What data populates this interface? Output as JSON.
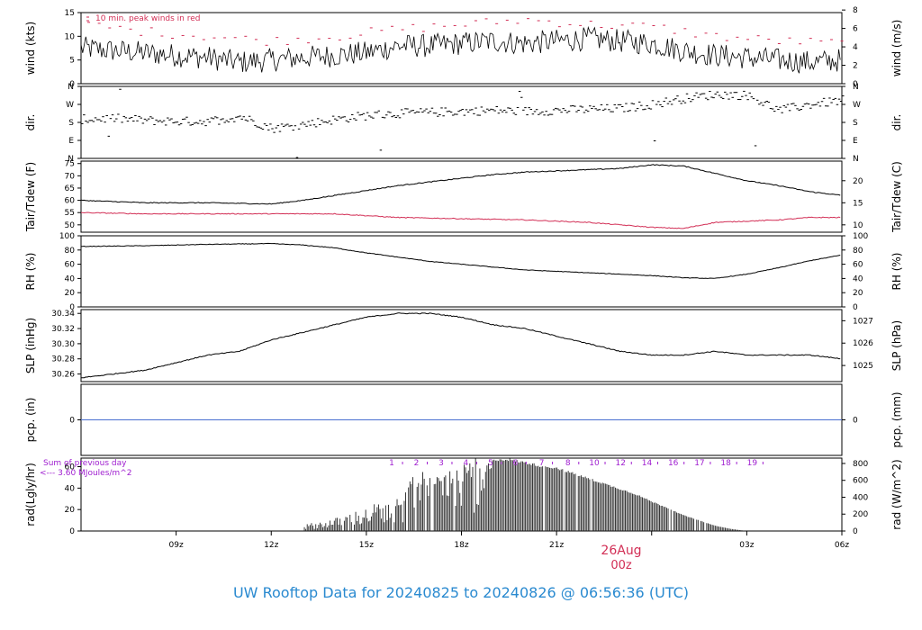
{
  "chart_data": [
    {
      "type": "line",
      "panel": "wind",
      "ylabel_left": "wind (kts)",
      "ylabel_right": "wind (m/s)",
      "ylim": [
        0,
        15
      ],
      "yticks_left": [
        0,
        5,
        10,
        15
      ],
      "yticks_right_values": [
        0,
        2,
        4,
        6,
        8
      ],
      "annotation": "10 min. peak winds in red",
      "series": [
        {
          "name": "wind",
          "color": "#000000",
          "x_hours": [
            0,
            1,
            2,
            3,
            4,
            5,
            6,
            7,
            8,
            9,
            10,
            11,
            12,
            13,
            14,
            15,
            16,
            17,
            18,
            19,
            20,
            21,
            22,
            23,
            24
          ],
          "values": [
            7.5,
            7,
            6.5,
            6,
            5.5,
            4.5,
            5,
            5.5,
            6,
            6.5,
            8,
            8,
            8.5,
            9,
            8.5,
            9,
            9.5,
            9,
            8.5,
            7,
            6,
            5.5,
            5,
            4.5,
            5
          ]
        },
        {
          "name": "peak",
          "color": "#d22e55",
          "x_hours": [
            0,
            2,
            4,
            6,
            8,
            10,
            12,
            14,
            16,
            18,
            20,
            22,
            24
          ],
          "values": [
            12.5,
            11,
            10,
            9,
            10,
            11.5,
            12.5,
            13.5,
            12.5,
            12,
            10,
            9,
            8.5
          ]
        }
      ]
    },
    {
      "type": "scatter",
      "panel": "dir",
      "ylabel_left": "dir.",
      "ylabel_right": "dir.",
      "yticks_labels": [
        "N",
        "E",
        "S",
        "W",
        "N"
      ],
      "ylim": [
        0,
        360
      ],
      "x_hours": [
        0,
        1,
        2,
        3,
        4,
        5,
        6,
        7,
        8,
        9,
        10,
        11,
        12,
        13,
        14,
        15,
        16,
        17,
        18,
        19,
        20,
        21,
        22,
        23,
        24
      ],
      "values": [
        195,
        200,
        190,
        185,
        185,
        210,
        150,
        170,
        195,
        215,
        225,
        230,
        235,
        240,
        235,
        240,
        245,
        250,
        270,
        300,
        320,
        315,
        240,
        270,
        290
      ]
    },
    {
      "type": "line",
      "panel": "temp",
      "ylabel_left": "Tair/Tdew (F)",
      "ylabel_right": "Tair/Tdew (C)",
      "ylim": [
        47,
        76
      ],
      "yticks_left": [
        50,
        55,
        60,
        65,
        70,
        75
      ],
      "yticks_right_values": [
        10,
        15,
        20
      ],
      "series": [
        {
          "name": "Tair",
          "color": "#000000",
          "x_hours": [
            0,
            2,
            4,
            6,
            7,
            8,
            9,
            10,
            11,
            12,
            13,
            14,
            15,
            16,
            17,
            18,
            19,
            20,
            21,
            22,
            23,
            24
          ],
          "values": [
            60,
            59,
            59,
            58.5,
            60,
            62,
            64,
            66,
            67.5,
            69,
            70.5,
            71.5,
            72,
            72.5,
            73,
            74.5,
            74,
            71,
            68,
            66,
            63.5,
            62
          ]
        },
        {
          "name": "Tdew",
          "color": "#d22e55",
          "x_hours": [
            0,
            2,
            4,
            6,
            8,
            10,
            12,
            14,
            16,
            18,
            19,
            20,
            21,
            22,
            23,
            24
          ],
          "values": [
            55,
            54.5,
            54.5,
            54.5,
            54.5,
            53,
            52.5,
            52,
            51,
            49,
            48.5,
            51,
            51.5,
            52,
            53,
            53
          ]
        }
      ]
    },
    {
      "type": "line",
      "panel": "rh",
      "ylabel_left": "RH (%)",
      "ylabel_right": "RH (%)",
      "ylim": [
        0,
        100
      ],
      "yticks_left": [
        0,
        20,
        40,
        60,
        80,
        100
      ],
      "yticks_right_values": [
        0,
        20,
        40,
        60,
        80,
        100
      ],
      "series": [
        {
          "name": "RH",
          "color": "#000000",
          "x_hours": [
            0,
            2,
            4,
            6,
            7,
            8,
            9,
            10,
            11,
            12,
            13,
            14,
            15,
            16,
            17,
            18,
            19,
            20,
            21,
            22,
            23,
            24
          ],
          "values": [
            85,
            86,
            88,
            89,
            87,
            83,
            76,
            70,
            64,
            60,
            56,
            52,
            50,
            48,
            46,
            44,
            41,
            40,
            46,
            55,
            65,
            73
          ]
        }
      ]
    },
    {
      "type": "line",
      "panel": "slp",
      "ylabel_left": "SLP (inHg)",
      "ylabel_right": "SLP (hPa)",
      "ylim": [
        30.25,
        30.345
      ],
      "yticks_left": [
        30.26,
        30.28,
        30.3,
        30.32,
        30.34
      ],
      "yticks_left_labels": [
        "30.26",
        "30.28",
        "30.30",
        "30.32",
        "30.34"
      ],
      "yticks_right_values": [
        1025,
        1026,
        1027
      ],
      "series": [
        {
          "name": "SLP",
          "color": "#000000",
          "x_hours": [
            0,
            1,
            2,
            3,
            4,
            5,
            6,
            7,
            8,
            9,
            10,
            11,
            12,
            13,
            14,
            15,
            16,
            17,
            18,
            19,
            20,
            21,
            22,
            23,
            24
          ],
          "values": [
            30.255,
            30.26,
            30.265,
            30.275,
            30.285,
            30.29,
            30.305,
            30.315,
            30.325,
            30.335,
            30.34,
            30.34,
            30.335,
            30.325,
            30.32,
            30.31,
            30.3,
            30.29,
            30.285,
            30.285,
            30.29,
            30.285,
            30.285,
            30.285,
            30.28
          ]
        }
      ]
    },
    {
      "type": "line",
      "panel": "pcp",
      "ylabel_left": "pcp. (in)",
      "ylabel_right": "pcp. (mm)",
      "ylim": [
        -1,
        1
      ],
      "yticks_left": [
        0
      ],
      "yticks_right_values": [
        0
      ],
      "series": [
        {
          "name": "pcp",
          "color": "#4a6fd0",
          "x_hours": [
            0,
            24
          ],
          "values": [
            0,
            0
          ]
        }
      ]
    },
    {
      "type": "bar",
      "panel": "rad",
      "ylabel_left": "rad(Lgly/hr)",
      "ylabel_right": "rad (W/m^2)",
      "ylim": [
        0,
        68
      ],
      "yticks_left": [
        0,
        20,
        40,
        60
      ],
      "yticks_right_values": [
        0,
        200,
        400,
        600,
        800
      ],
      "x_hours": [
        6,
        7,
        8,
        8.5,
        9,
        9.5,
        10,
        10.5,
        11,
        11.5,
        12,
        12.5,
        13,
        13.5,
        14,
        14.5,
        15,
        15.5,
        16,
        16.5,
        17,
        17.5,
        18,
        18.5,
        19,
        19.5,
        20,
        20.5,
        21
      ],
      "values": [
        0,
        5,
        10,
        15,
        18,
        25,
        30,
        55,
        55,
        60,
        65,
        68,
        68,
        68,
        65,
        62,
        60,
        55,
        50,
        45,
        40,
        35,
        28,
        22,
        15,
        10,
        5,
        2,
        0
      ],
      "note_lines": [
        "Sum of previous day",
        "<--- 3.60 MJoules/m^2"
      ],
      "top_labels": [
        "1",
        "2",
        "3",
        "4",
        "5",
        "6",
        "7",
        "8",
        "10",
        "12",
        "14",
        "16",
        "17",
        "18",
        "19"
      ]
    }
  ],
  "x_axis": {
    "tick_labels": [
      "09z",
      "12z",
      "15z",
      "18z",
      "21z",
      "00z",
      "03z",
      "06z"
    ],
    "date_label": "26Aug",
    "date_label_color": "#d22e55"
  },
  "footer": {
    "title": "UW Rooftop Data for 20240825  to  20240826 @ 06:56:36  (UTC)",
    "color": "#2a8ad0"
  }
}
